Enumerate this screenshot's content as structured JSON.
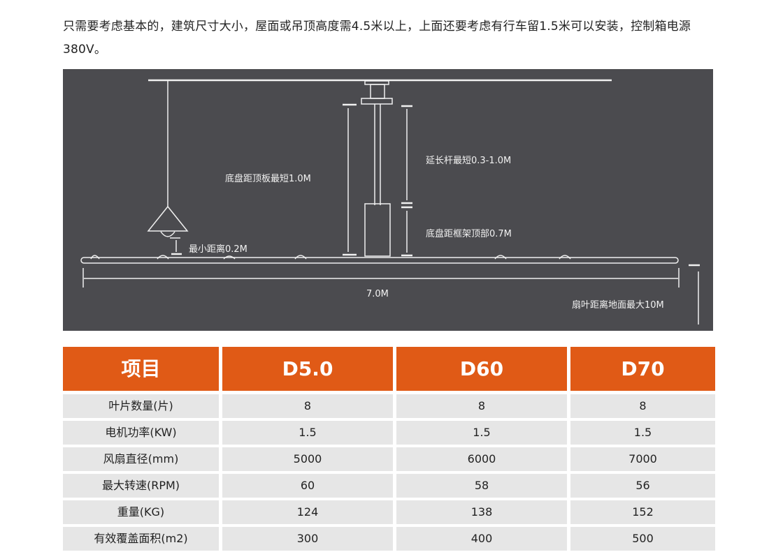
{
  "intro": "只需要考虑基本的，建筑尺寸大小，屋面或吊顶高度需4.5米以上，上面还要考虑有行车留1.5米可以安装，控制箱电源380V。",
  "diagram": {
    "labels": {
      "chassis_to_ceiling": "底盘距顶板最短1.0M",
      "extension_rod": "延长杆最短0.3-1.0M",
      "chassis_to_frame": "底盘距框架顶部0.7M",
      "min_distance": "最小距离0.2M",
      "diameter": "7.0M",
      "blade_to_ground": "扇叶距离地面最大10M"
    },
    "colors": {
      "background": "#4b4b4f",
      "lines": "#f0f0f0"
    }
  },
  "table": {
    "headers": [
      "项目",
      "D5.0",
      "D60",
      "D70"
    ],
    "rows": [
      [
        "叶片数量(片)",
        "8",
        "8",
        "8"
      ],
      [
        "电机功率(KW)",
        "1.5",
        "1.5",
        "1.5"
      ],
      [
        "风扇直径(mm)",
        "5000",
        "6000",
        "7000"
      ],
      [
        "最大转速(RPM)",
        "60",
        "58",
        "56"
      ],
      [
        "重量(KG)",
        "124",
        "138",
        "152"
      ],
      [
        "有效覆盖面积(m2)",
        "300",
        "400",
        "500"
      ]
    ],
    "header_color": "#e05a16"
  }
}
